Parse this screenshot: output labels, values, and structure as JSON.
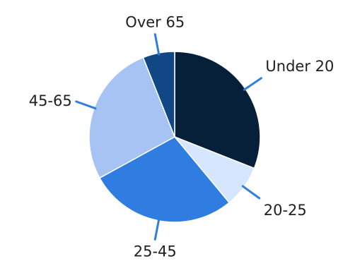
{
  "chart_data": {
    "type": "pie",
    "title": "",
    "start_angle_deg": 0,
    "direction": "clockwise",
    "labels": [
      "Under 20",
      "20-25",
      "25-45",
      "45-65",
      "Over 65"
    ],
    "values": [
      31,
      8,
      28,
      27,
      6
    ],
    "colors": [
      "#07203a",
      "#d7e6ff",
      "#2f7de0",
      "#a6c3f4",
      "#124785"
    ],
    "leader_line_color": "#2f7de0",
    "legend": "none"
  }
}
